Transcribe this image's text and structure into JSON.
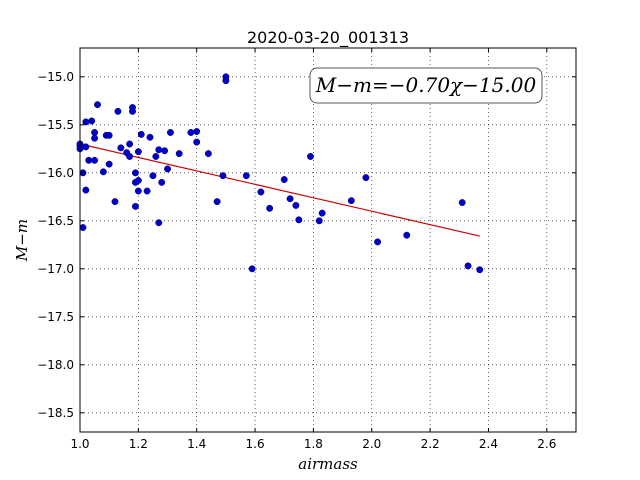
{
  "chart_data": {
    "type": "scatter",
    "title": "2020-03-20_001313",
    "xlabel": "airmass",
    "ylabel": "M−m",
    "annotation": "M−m=−0.70χ−15.00",
    "xlim": [
      1.0,
      2.7
    ],
    "ylim": [
      -18.7,
      -14.7
    ],
    "y_inverted": false,
    "grid": true,
    "x_ticks": [
      1.0,
      1.2,
      1.4,
      1.6,
      1.8,
      2.0,
      2.2,
      2.4,
      2.6
    ],
    "x_tick_labels": [
      "1.0",
      "1.2",
      "1.4",
      "1.6",
      "1.8",
      "2.0",
      "2.2",
      "2.4",
      "2.6"
    ],
    "y_ticks": [
      -15.0,
      -15.5,
      -16.0,
      -16.5,
      -17.0,
      -17.5,
      -18.0,
      -18.5
    ],
    "y_tick_labels": [
      "−15.0",
      "−15.5",
      "−16.0",
      "−16.5",
      "−17.0",
      "−17.5",
      "−18.0",
      "−18.5"
    ],
    "fit": {
      "slope": -0.7,
      "intercept": -15.0,
      "x_range": [
        1.0,
        2.37
      ],
      "color": "#cc0000"
    },
    "marker_color": "#0000cc",
    "points": [
      {
        "x": 1.0,
        "y": -15.7
      },
      {
        "x": 1.0,
        "y": -15.72
      },
      {
        "x": 1.0,
        "y": -15.75
      },
      {
        "x": 1.01,
        "y": -16.57
      },
      {
        "x": 1.01,
        "y": -16.0
      },
      {
        "x": 1.02,
        "y": -15.73
      },
      {
        "x": 1.02,
        "y": -16.18
      },
      {
        "x": 1.02,
        "y": -15.47
      },
      {
        "x": 1.03,
        "y": -15.87
      },
      {
        "x": 1.04,
        "y": -15.46
      },
      {
        "x": 1.05,
        "y": -15.58
      },
      {
        "x": 1.05,
        "y": -15.64
      },
      {
        "x": 1.05,
        "y": -15.87
      },
      {
        "x": 1.06,
        "y": -15.29
      },
      {
        "x": 1.08,
        "y": -15.99
      },
      {
        "x": 1.09,
        "y": -15.61
      },
      {
        "x": 1.1,
        "y": -15.61
      },
      {
        "x": 1.1,
        "y": -15.91
      },
      {
        "x": 1.12,
        "y": -16.3
      },
      {
        "x": 1.13,
        "y": -15.36
      },
      {
        "x": 1.14,
        "y": -15.74
      },
      {
        "x": 1.16,
        "y": -15.79
      },
      {
        "x": 1.17,
        "y": -15.83
      },
      {
        "x": 1.17,
        "y": -15.7
      },
      {
        "x": 1.18,
        "y": -15.32
      },
      {
        "x": 1.18,
        "y": -15.36
      },
      {
        "x": 1.19,
        "y": -16.1
      },
      {
        "x": 1.19,
        "y": -16.0
      },
      {
        "x": 1.19,
        "y": -16.35
      },
      {
        "x": 1.2,
        "y": -16.08
      },
      {
        "x": 1.2,
        "y": -15.78
      },
      {
        "x": 1.2,
        "y": -16.19
      },
      {
        "x": 1.21,
        "y": -15.6
      },
      {
        "x": 1.23,
        "y": -16.19
      },
      {
        "x": 1.24,
        "y": -15.63
      },
      {
        "x": 1.25,
        "y": -16.03
      },
      {
        "x": 1.26,
        "y": -15.83
      },
      {
        "x": 1.27,
        "y": -15.76
      },
      {
        "x": 1.27,
        "y": -16.52
      },
      {
        "x": 1.28,
        "y": -16.1
      },
      {
        "x": 1.29,
        "y": -15.77
      },
      {
        "x": 1.3,
        "y": -15.96
      },
      {
        "x": 1.31,
        "y": -15.58
      },
      {
        "x": 1.34,
        "y": -15.8
      },
      {
        "x": 1.38,
        "y": -15.58
      },
      {
        "x": 1.4,
        "y": -15.57
      },
      {
        "x": 1.4,
        "y": -15.68
      },
      {
        "x": 1.44,
        "y": -15.8
      },
      {
        "x": 1.47,
        "y": -16.3
      },
      {
        "x": 1.49,
        "y": -16.03
      },
      {
        "x": 1.5,
        "y": -15.0
      },
      {
        "x": 1.5,
        "y": -15.04
      },
      {
        "x": 1.57,
        "y": -16.03
      },
      {
        "x": 1.59,
        "y": -17.0
      },
      {
        "x": 1.62,
        "y": -16.2
      },
      {
        "x": 1.65,
        "y": -16.37
      },
      {
        "x": 1.7,
        "y": -16.07
      },
      {
        "x": 1.72,
        "y": -16.27
      },
      {
        "x": 1.74,
        "y": -16.34
      },
      {
        "x": 1.75,
        "y": -16.49
      },
      {
        "x": 1.79,
        "y": -15.83
      },
      {
        "x": 1.82,
        "y": -16.5
      },
      {
        "x": 1.83,
        "y": -16.42
      },
      {
        "x": 1.93,
        "y": -16.29
      },
      {
        "x": 1.98,
        "y": -16.05
      },
      {
        "x": 2.02,
        "y": -16.72
      },
      {
        "x": 2.12,
        "y": -16.65
      },
      {
        "x": 2.31,
        "y": -16.31
      },
      {
        "x": 2.33,
        "y": -16.97
      },
      {
        "x": 2.37,
        "y": -17.01
      }
    ]
  }
}
